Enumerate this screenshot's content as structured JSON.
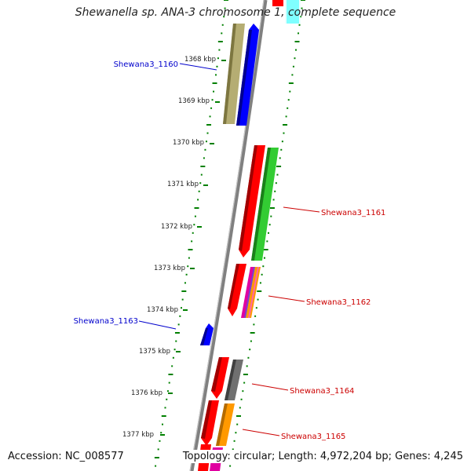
{
  "title": "Shewanella sp. ANA-3 chromosome 1, complete sequence",
  "footer": {
    "accession": "Accession: NC_008577",
    "summary": "Topology: circular; Length: 4,972,204 bp; Genes: 4,245"
  },
  "ticks": [
    "1368 kbp",
    "1369 kbp",
    "1370 kbp",
    "1371 kbp",
    "1372 kbp",
    "1373 kbp",
    "1374 kbp",
    "1375 kbp",
    "1376 kbp",
    "1377 kbp"
  ],
  "gene_labels": [
    {
      "text": "Shewana3_1160",
      "color": "#0000cc"
    },
    {
      "text": "Shewana3_1161",
      "color": "#cc0000"
    },
    {
      "text": "Shewana3_1162",
      "color": "#cc0000"
    },
    {
      "text": "Shewana3_1163",
      "color": "#0000cc"
    },
    {
      "text": "Shewana3_1164",
      "color": "#cc0000"
    },
    {
      "text": "Shewana3_1165",
      "color": "#cc0000"
    }
  ],
  "colors": {
    "backbone": "#808080",
    "tick": "#008000",
    "forward_strand": "#ff0000",
    "reverse_strand": "#0000ff",
    "olive": "#b5ad73",
    "green": "#33cc33",
    "gray": "#707070",
    "orange": "#ff9900",
    "magenta": "#e000a0",
    "cyan": "#00ffff"
  }
}
